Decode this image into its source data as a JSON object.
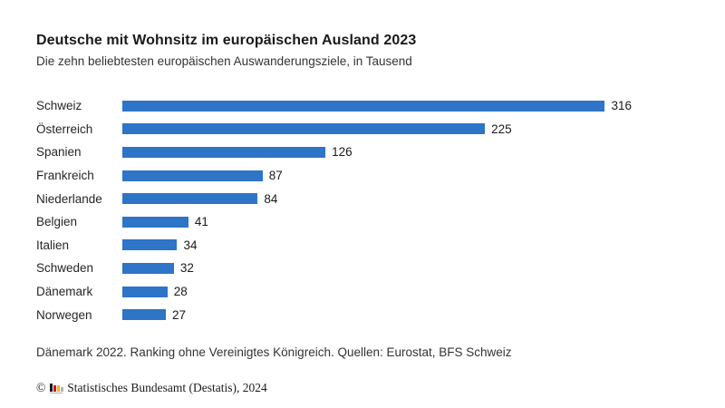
{
  "header": {
    "title": "Deutsche mit Wohnsitz im europäischen Ausland 2023",
    "subtitle": "Die zehn beliebtesten europäischen Auswanderungsziele, in Tausend"
  },
  "chart_data": {
    "type": "bar",
    "orientation": "horizontal",
    "title": "Deutsche mit Wohnsitz im europäischen Ausland 2023",
    "subtitle": "Die zehn beliebtesten europäischen Auswanderungsziele, in Tausend",
    "unit": "Tausend",
    "categories": [
      "Schweiz",
      "Österreich",
      "Spanien",
      "Frankreich",
      "Niederlande",
      "Belgien",
      "Italien",
      "Schweden",
      "Dänemark",
      "Norwegen"
    ],
    "values": [
      316,
      225,
      126,
      87,
      84,
      41,
      34,
      32,
      28,
      27
    ],
    "xlabel": "",
    "ylabel": "",
    "xlim": [
      0,
      316
    ],
    "grid": false,
    "value_labels": true,
    "legend": false
  },
  "footer": {
    "note": "Dänemark 2022. Ranking ohne Vereinigtes Königreich. Quellen: Eurostat, BFS Schweiz",
    "copyright_symbol": "©",
    "copyright_text": "Statistisches Bundesamt (Destatis), 2024"
  },
  "icons": {
    "destatis_logo": "bar-chart-logo"
  },
  "colors": {
    "background": "#ffffff",
    "bar": "#2e74c7",
    "title_text": "#1a1a1a",
    "body_text": "#333333",
    "logo_black": "#1a1a1a",
    "logo_red": "#e2001a",
    "logo_gold": "#f5b400",
    "logo_gray": "#b3b3b3"
  }
}
